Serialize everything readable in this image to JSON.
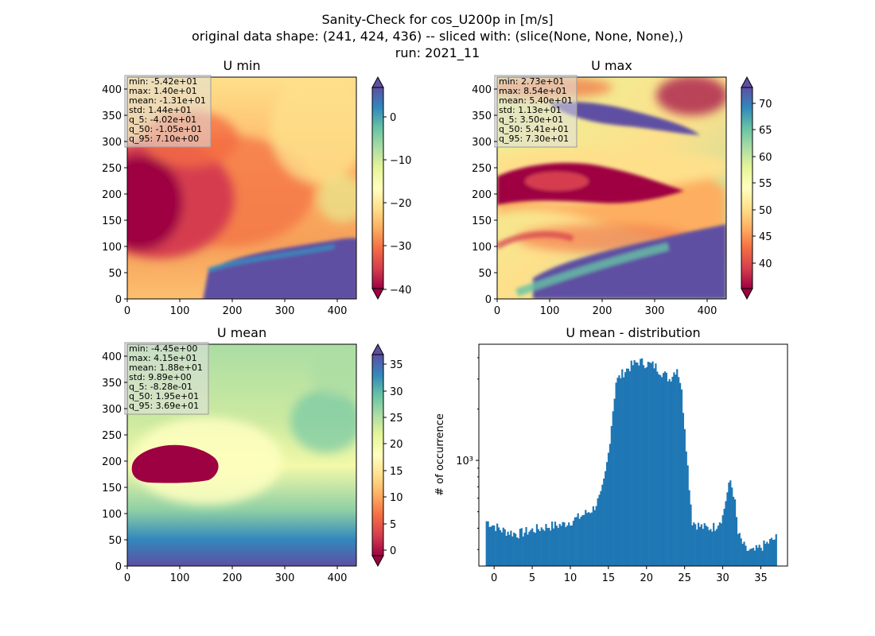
{
  "figure": {
    "title_lines": [
      "Sanity-Check for cos_U200p in [m/s]",
      "original data shape: (241, 424, 436) -- sliced with: (slice(None, None, None),)",
      "run: 2021_11"
    ]
  },
  "chart_data": [
    {
      "type": "heatmap",
      "title": "U min",
      "xlim": [
        0,
        436
      ],
      "ylim": [
        0,
        424
      ],
      "xticks": [
        "0",
        "100",
        "200",
        "300",
        "400"
      ],
      "yticks": [
        "0",
        "50",
        "100",
        "150",
        "200",
        "250",
        "300",
        "350",
        "400"
      ],
      "colormap": "Spectral",
      "colorbar": {
        "range": [
          -42,
          8
        ],
        "ticks": [
          "0",
          "−10",
          "−20",
          "−30",
          "−40"
        ],
        "extend": "both"
      },
      "stats": [
        "min: -5.42e+01",
        "max: 1.40e+01",
        "mean: -1.31e+01",
        "std: 1.44e+01",
        "q_5: -4.02e+01",
        "q_50: -1.05e+01",
        "q_95: 7.10e+00"
      ]
    },
    {
      "type": "heatmap",
      "title": "U max",
      "xlim": [
        0,
        436
      ],
      "ylim": [
        0,
        424
      ],
      "xticks": [
        "0",
        "100",
        "200",
        "300",
        "400"
      ],
      "yticks": [
        "0",
        "50",
        "100",
        "150",
        "200",
        "250",
        "300",
        "350",
        "400"
      ],
      "colormap": "Spectral",
      "colorbar": {
        "range": [
          35.5,
          74.5
        ],
        "ticks": [
          "70",
          "65",
          "60",
          "55",
          "50",
          "45",
          "40"
        ],
        "extend": "both"
      },
      "stats": [
        "min: 2.73e+01",
        "max: 8.54e+01",
        "mean: 5.40e+01",
        "std: 1.13e+01",
        "q_5: 3.50e+01",
        "q_50: 5.41e+01",
        "q_95: 7.30e+01"
      ]
    },
    {
      "type": "heatmap",
      "title": "U mean",
      "xlim": [
        0,
        436
      ],
      "ylim": [
        0,
        424
      ],
      "xticks": [
        "0",
        "100",
        "200",
        "300",
        "400"
      ],
      "yticks": [
        "0",
        "50",
        "100",
        "150",
        "200",
        "250",
        "300",
        "350",
        "400"
      ],
      "colormap": "Spectral",
      "colorbar": {
        "range": [
          -1.5,
          37.7
        ],
        "ticks": [
          "35",
          "30",
          "25",
          "20",
          "15",
          "10",
          "5",
          "0"
        ],
        "extend": "both"
      },
      "stats": [
        "min: -4.45e+00",
        "max: 4.15e+01",
        "mean: 1.88e+01",
        "std: 9.89e+00",
        "q_5: -8.28e-01",
        "q_50: 1.95e+01",
        "q_95: 3.69e+01"
      ]
    },
    {
      "type": "bar",
      "title": "U mean - distribution",
      "ylabel": "# of occurrence",
      "yscale": "log",
      "xlim": [
        -2,
        38.5
      ],
      "ylim": [
        240,
        4800
      ],
      "xticks": [
        "0",
        "5",
        "10",
        "15",
        "20",
        "25",
        "30",
        "35"
      ],
      "yticks": [
        "10³"
      ],
      "bar_color": "#1f77b4",
      "x": [
        -1,
        1,
        3,
        5,
        7,
        9,
        11,
        13,
        14,
        14.5,
        15,
        15.5,
        16,
        17,
        18,
        19,
        20,
        21,
        22,
        23,
        24,
        24.5,
        25,
        25.5,
        26,
        27,
        28,
        29,
        30,
        30.5,
        31,
        31.5,
        32,
        33,
        34,
        35,
        36,
        37
      ],
      "values": [
        440,
        390,
        370,
        390,
        410,
        420,
        460,
        520,
        620,
        780,
        1100,
        1800,
        2900,
        3300,
        3600,
        3800,
        3700,
        3600,
        3300,
        3000,
        3500,
        2800,
        1600,
        800,
        440,
        410,
        400,
        410,
        470,
        620,
        760,
        620,
        370,
        300,
        290,
        310,
        330,
        350
      ]
    }
  ]
}
